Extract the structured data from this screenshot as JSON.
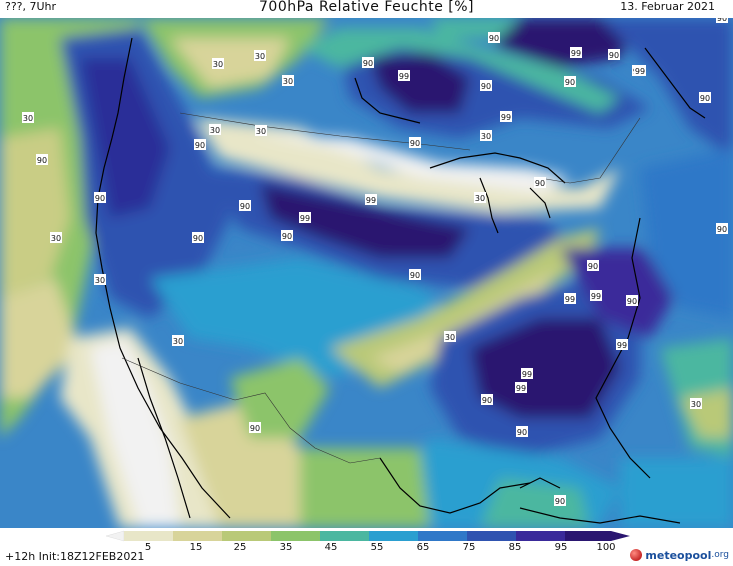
{
  "header": {
    "left_text": "???, 7Uhr",
    "title": "700hPa Relative Feuchte [%]",
    "date": "13. Februar 2021"
  },
  "footer": {
    "run_info": "+12h  Init:18Z12FEB2021",
    "logo_text": "meteopool",
    "logo_tld": ".org"
  },
  "colorbar": {
    "ticks": [
      "5",
      "15",
      "25",
      "35",
      "45",
      "55",
      "65",
      "75",
      "85",
      "95",
      "100"
    ],
    "colors": [
      "#f2f2f2",
      "#e8e6c8",
      "#d8d49a",
      "#b9c978",
      "#8cc46a",
      "#4bb7a0",
      "#2b9fd0",
      "#2f78c8",
      "#2f53b0",
      "#3a2a9a",
      "#2a1670"
    ]
  },
  "map": {
    "contour_labels": [
      "30",
      "30",
      "30",
      "90",
      "30",
      "30",
      "30",
      "30",
      "90",
      "90",
      "90",
      "99",
      "90",
      "90",
      "90",
      "99",
      "99",
      "90",
      "99",
      "90",
      "99",
      "90",
      "99",
      "90",
      "90",
      "30",
      "90",
      "90",
      "90",
      "99",
      "30",
      "99",
      "90",
      "99",
      "90",
      "99",
      "90",
      "99",
      "90",
      "99",
      "30",
      "90",
      "90",
      "30",
      "30",
      "90",
      "90",
      "30"
    ]
  }
}
